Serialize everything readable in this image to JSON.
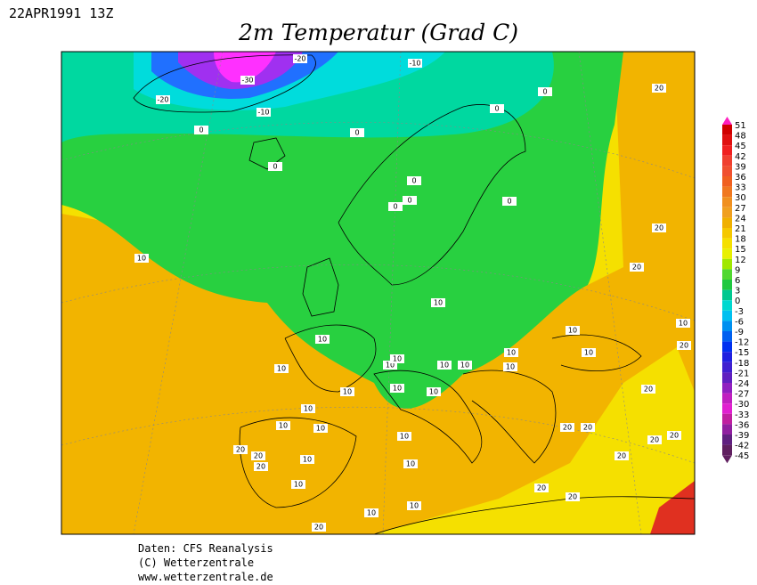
{
  "header": {
    "date": "22APR1991 13Z",
    "title": "2m Temperatur (Grad C)"
  },
  "colorbar": {
    "ticks": [
      51,
      48,
      45,
      42,
      39,
      36,
      33,
      30,
      27,
      24,
      21,
      18,
      15,
      12,
      9,
      6,
      3,
      0,
      -3,
      -6,
      -9,
      -12,
      -15,
      -18,
      -21,
      -24,
      -27,
      -30,
      -33,
      -36,
      -39,
      -42,
      -45
    ]
  },
  "contour_labels": [
    -20,
    -30,
    -20,
    -10,
    -10,
    0,
    0,
    0,
    0,
    0,
    0,
    0,
    0,
    0,
    20,
    20,
    20,
    10,
    10,
    10,
    10,
    10,
    10,
    10,
    10,
    10,
    10,
    10,
    10,
    20,
    20,
    10,
    10,
    10,
    10,
    10,
    10,
    10,
    10,
    20,
    20,
    20,
    20,
    20,
    20,
    20,
    20,
    20,
    20,
    10,
    10,
    20,
    10,
    10,
    10
  ],
  "footer": {
    "lines": [
      "Daten: CFS Reanalysis",
      "(C) Wetterzentrale",
      "www.wetterzentrale.de"
    ]
  }
}
